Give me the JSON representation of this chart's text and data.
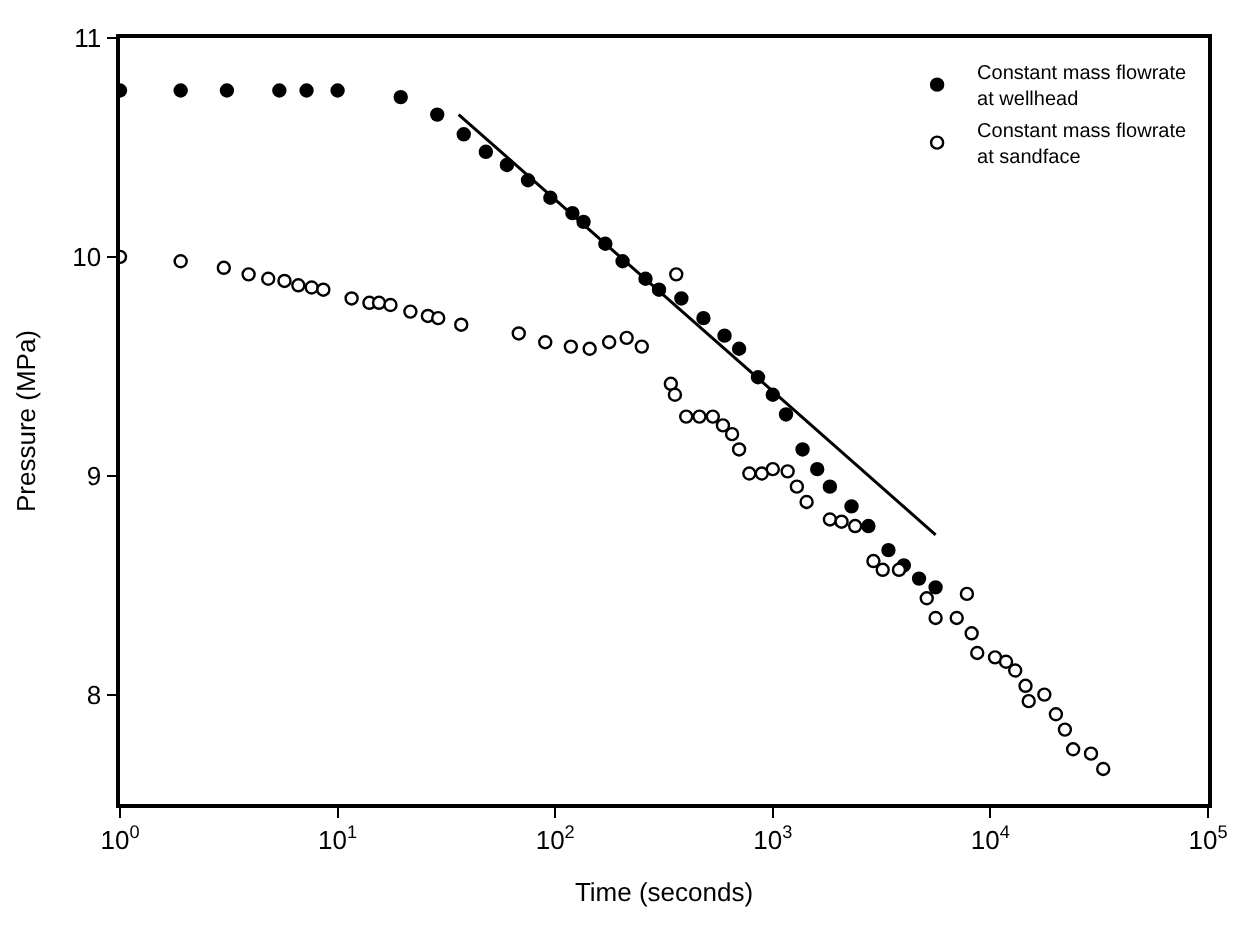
{
  "chart_data": {
    "type": "scatter",
    "xlabel": "Time (seconds)",
    "ylabel": "Pressure (MPa)",
    "log": "x",
    "xlim": [
      1,
      100000
    ],
    "xticks": [
      {
        "value": 1,
        "label": "10$^{0}$"
      },
      {
        "value": 10,
        "label": "10$^{1}$"
      },
      {
        "value": 100,
        "label": "10$^{2}$"
      },
      {
        "value": 1000,
        "label": "10$^{3}$"
      },
      {
        "value": 10000,
        "label": "10$^{4}$"
      },
      {
        "value": 100000,
        "label": "10$^{5}$"
      }
    ],
    "ylim": [
      7.5,
      11
    ],
    "yticks": [
      8,
      9,
      10,
      11
    ],
    "legend": "top right",
    "marker": "circle",
    "series": [
      {
        "name": "Constant mass flowrate\nat wellhead",
        "color": "#000000",
        "x": [
          1,
          1.9,
          3.1,
          5.4,
          7.2,
          10,
          19.5,
          28.7,
          38,
          48,
          60,
          75,
          95,
          120,
          135,
          170,
          204,
          260,
          300,
          380,
          480,
          600,
          700,
          855,
          1000,
          1150,
          1370,
          1600,
          1830,
          2300,
          2750,
          3400,
          4000,
          4700,
          5600
        ],
        "values": [
          10.76,
          10.76,
          10.76,
          10.76,
          10.76,
          10.76,
          10.73,
          10.65,
          10.56,
          10.48,
          10.42,
          10.35,
          10.27,
          10.2,
          10.16,
          10.06,
          9.98,
          9.9,
          9.85,
          9.81,
          9.72,
          9.64,
          9.58,
          9.45,
          9.37,
          9.28,
          9.12,
          9.03,
          8.95,
          8.86,
          8.77,
          8.66,
          8.59,
          8.53,
          8.49
        ]
      },
      {
        "name": "Constant mass flowrate\nat sandface",
        "color": "#ffffff",
        "x": [
          1,
          1.9,
          3,
          3.9,
          4.8,
          5.7,
          6.6,
          7.6,
          8.6,
          11.6,
          14,
          15.5,
          17.5,
          21.6,
          26,
          29,
          37,
          68,
          90,
          118,
          144,
          177,
          213,
          250,
          340,
          355,
          360,
          400,
          460,
          530,
          590,
          650,
          700,
          780,
          890,
          1000,
          1170,
          1290,
          1430,
          1830,
          2070,
          2390,
          2900,
          3200,
          3800,
          5100,
          5600,
          7000,
          7800,
          8200,
          8700,
          10500,
          11800,
          13000,
          14500,
          15000,
          17700,
          20000,
          22000,
          24000,
          29000,
          33000
        ],
        "values": [
          10.0,
          9.98,
          9.95,
          9.92,
          9.9,
          9.89,
          9.87,
          9.86,
          9.85,
          9.81,
          9.79,
          9.79,
          9.78,
          9.75,
          9.73,
          9.72,
          9.69,
          9.65,
          9.61,
          9.59,
          9.58,
          9.61,
          9.63,
          9.59,
          9.42,
          9.37,
          9.92,
          9.27,
          9.27,
          9.27,
          9.23,
          9.19,
          9.12,
          9.01,
          9.01,
          9.03,
          9.02,
          8.95,
          8.88,
          8.8,
          8.79,
          8.77,
          8.61,
          8.57,
          8.57,
          8.44,
          8.35,
          8.35,
          8.46,
          8.28,
          8.19,
          8.17,
          8.15,
          8.11,
          8.04,
          7.97,
          8.0,
          7.91,
          7.84,
          7.75,
          7.73,
          7.66
        ]
      },
      {
        "type": "line",
        "marker": "none",
        "color": "#000000",
        "x": [
          36,
          5600
        ],
        "values": [
          10.65,
          8.73
        ]
      }
    ]
  }
}
